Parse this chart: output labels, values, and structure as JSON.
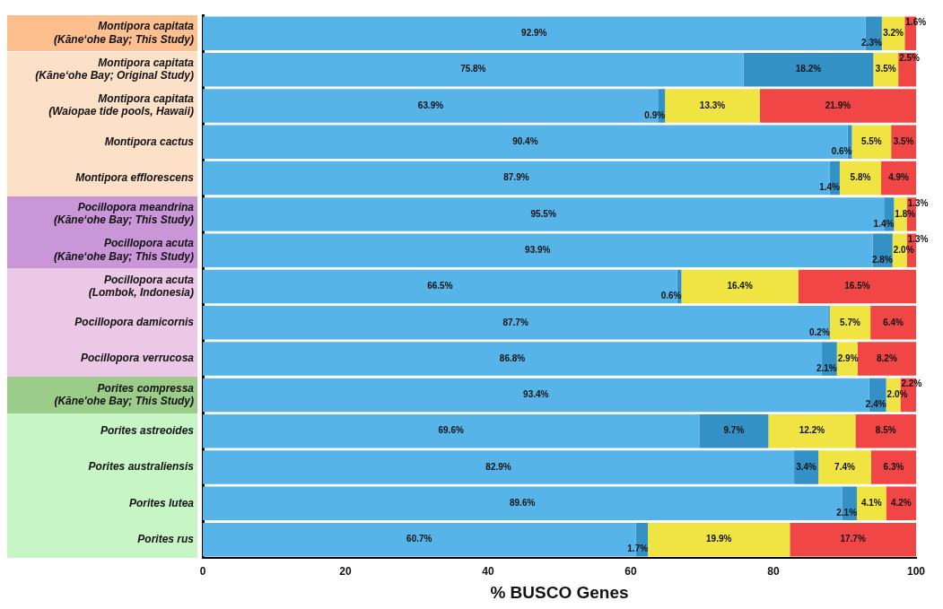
{
  "chart_data": {
    "type": "bar",
    "orientation": "horizontal",
    "stacked": true,
    "xlabel": "% BUSCO Genes",
    "xlim": [
      0,
      100
    ],
    "xticks": [
      0,
      20,
      40,
      60,
      80,
      100
    ],
    "grid": false,
    "legend": false,
    "categories": [
      "Montipora capitata\n(Kāne‘ohe Bay; This Study)",
      "Montipora capitata\n(Kāne‘ohe Bay; Original Study)",
      "Montipora capitata\n(Waiopae tide pools, Hawaii)",
      "Montipora cactus",
      "Montipora efflorescens",
      "Pocillopora meandrina\n(Kāne‘ohe Bay; This Study)",
      "Pocillopora acuta\n(Kāne‘ohe Bay; This Study)",
      "Pocillopora acuta\n(Lombok, Indonesia)",
      "Pocillopora damicornis",
      "Pocillopora verrucosa",
      "Porites compressa\n(Kāne'ohe Bay; This Study)",
      "Porites astreoides",
      "Porites australiensis",
      "Porites lutea",
      "Porites rus"
    ],
    "series": [
      {
        "color": "#56b4e9",
        "values": [
          92.9,
          75.8,
          63.9,
          90.4,
          87.9,
          95.5,
          93.9,
          66.5,
          87.7,
          86.8,
          93.4,
          69.6,
          82.9,
          89.6,
          60.7
        ],
        "value_labels": [
          "92.9%",
          "75.8%",
          "63.9%",
          "90.4%",
          "87.9%",
          "95.5%",
          "93.9%",
          "66.5%",
          "87.7%",
          "86.8%",
          "93.4%",
          "69.6%",
          "82.9%",
          "89.6%",
          "60.7%"
        ]
      },
      {
        "color": "#3491c6",
        "values": [
          2.3,
          18.2,
          0.9,
          0.6,
          1.4,
          1.4,
          2.8,
          0.6,
          0.2,
          2.1,
          2.4,
          9.7,
          3.4,
          2.1,
          1.7
        ],
        "value_labels": [
          "2.3%",
          "18.2%",
          "0.9%",
          "0.6%",
          "1.4%",
          "1.4%",
          "2.8%",
          "0.6%",
          "0.2%",
          "2.1%",
          "2.4%",
          "9.7%",
          "3.4%",
          "2.1%",
          "1.7%"
        ]
      },
      {
        "color": "#f0e442",
        "values": [
          3.2,
          3.5,
          13.3,
          5.5,
          5.8,
          1.8,
          2.0,
          16.4,
          5.7,
          2.9,
          2.0,
          12.2,
          7.4,
          4.1,
          19.9
        ],
        "value_labels": [
          "3.2%",
          "3.5%",
          "13.3%",
          "5.5%",
          "5.8%",
          "1.8%",
          "2.0%",
          "16.4%",
          "5.7%",
          "2.9%",
          "2.0%",
          "12.2%",
          "7.4%",
          "4.1%",
          "19.9%"
        ]
      },
      {
        "color": "#f04646",
        "values": [
          1.6,
          2.5,
          21.9,
          3.5,
          4.9,
          1.3,
          1.3,
          16.5,
          6.4,
          8.2,
          2.2,
          8.5,
          6.3,
          4.2,
          17.7
        ],
        "value_labels": [
          "1.6%",
          "2.5%",
          "21.9%",
          "3.5%",
          "4.9%",
          "1.3%",
          "1.3%",
          "16.5%",
          "6.4%",
          "8.2%",
          "2.2%",
          "8.5%",
          "6.3%",
          "4.2%",
          "17.7%"
        ]
      }
    ]
  }
}
